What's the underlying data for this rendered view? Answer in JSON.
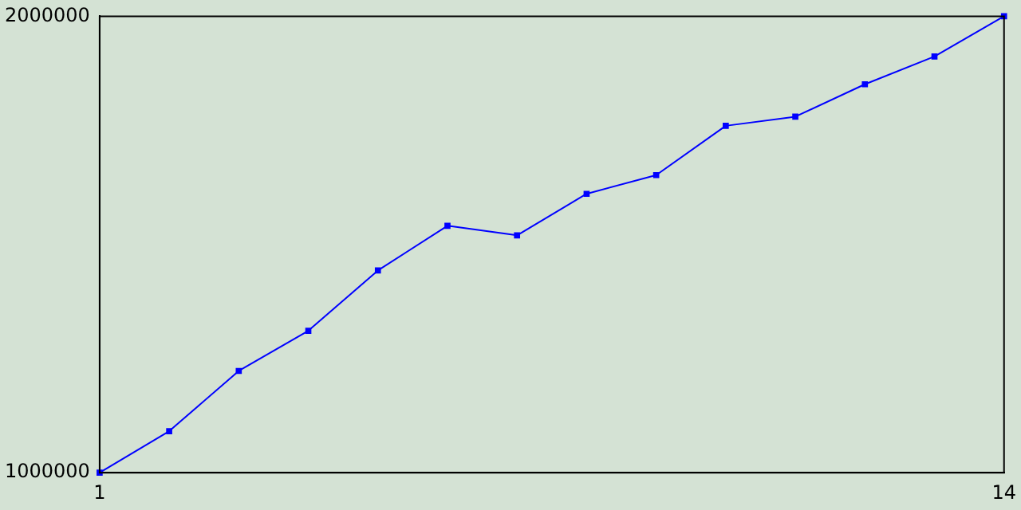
{
  "chart_data": {
    "type": "line",
    "x": [
      1,
      2,
      3,
      4,
      5,
      6,
      7,
      8,
      9,
      10,
      11,
      12,
      13,
      14
    ],
    "series": [
      {
        "color": "#0000ff",
        "values": [
          1000000,
          1091000,
          1223000,
          1311000,
          1443000,
          1541000,
          1520000,
          1611000,
          1652000,
          1760000,
          1780000,
          1851000,
          1912000,
          2000000
        ]
      }
    ],
    "xlim": [
      1,
      14
    ],
    "xticks": [
      1,
      14
    ],
    "ylim": [
      1000000,
      2000000
    ],
    "yticks": [
      1000000,
      2000000
    ],
    "grid": false,
    "legend": false,
    "marker": "square",
    "line_style": "solid"
  }
}
